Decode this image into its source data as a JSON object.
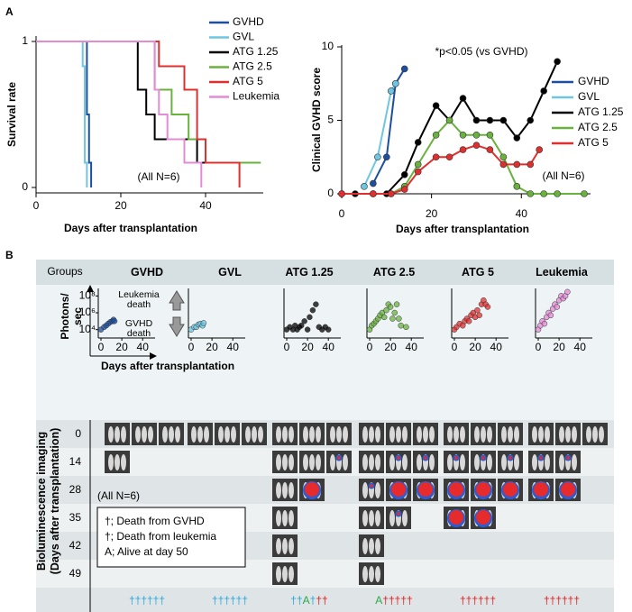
{
  "panel_labels": [
    "A",
    "B"
  ],
  "chart_data": [
    {
      "type": "survival",
      "ylabel": "Survival rate",
      "xlabel": "Days after transplantation",
      "annotation": "(All N=6)",
      "xlim": [
        0,
        55
      ],
      "xticks": [
        0,
        20,
        40
      ],
      "ylim": [
        0,
        1
      ],
      "yticks": [
        0,
        1
      ],
      "series": [
        {
          "name": "GVHD",
          "color": "#1d4f9e",
          "x": [
            0,
            12,
            12.5,
            13
          ],
          "values": [
            1,
            0.5,
            0.17,
            0
          ]
        },
        {
          "name": "GVL",
          "color": "#6fc6e0",
          "x": [
            0,
            11,
            11.5,
            12
          ],
          "values": [
            1,
            0.83,
            0.17,
            0
          ]
        },
        {
          "name": "ATG 1.25",
          "color": "#000000",
          "x": [
            0,
            24,
            26,
            28,
            38,
            53
          ],
          "values": [
            1,
            0.67,
            0.5,
            0.33,
            0.17,
            0.17
          ]
        },
        {
          "name": "ATG 2.5",
          "color": "#6ab23e",
          "x": [
            0,
            28,
            32,
            36,
            40,
            53
          ],
          "values": [
            1,
            0.67,
            0.5,
            0.33,
            0.17,
            0.17
          ]
        },
        {
          "name": "ATG 5",
          "color": "#e02f2f",
          "x": [
            0,
            29,
            35,
            38,
            40,
            48
          ],
          "values": [
            1,
            0.83,
            0.67,
            0.33,
            0.17,
            0
          ]
        },
        {
          "name": "Leukemia",
          "color": "#e48bd5",
          "x": [
            0,
            28,
            29,
            31,
            35,
            39
          ],
          "values": [
            1,
            0.67,
            0.5,
            0.33,
            0.17,
            0
          ]
        }
      ]
    },
    {
      "type": "line",
      "ylabel": "Clinical GVHD score",
      "xlabel": "Days after transplantation",
      "annotations": [
        "*p<0.05 (vs GVHD)",
        "(All N=6)"
      ],
      "xlim": [
        0,
        55
      ],
      "xticks": [
        0,
        20,
        40
      ],
      "ylim": [
        0,
        10
      ],
      "yticks": [
        0,
        5,
        10
      ],
      "series": [
        {
          "name": "GVHD",
          "color": "#1d4f9e",
          "x": [
            7,
            10,
            12,
            14
          ],
          "values": [
            0.7,
            2.5,
            7.5,
            8.5
          ]
        },
        {
          "name": "GVL",
          "color": "#6fc6e0",
          "x": [
            5,
            8,
            11,
            12
          ],
          "values": [
            0.5,
            2.5,
            7,
            7.5
          ]
        },
        {
          "name": "ATG 1.25",
          "color": "#000000",
          "x": [
            0,
            3,
            7,
            10,
            14,
            17,
            21,
            24,
            27,
            30,
            33,
            36,
            39,
            42,
            45,
            48
          ],
          "values": [
            0,
            0,
            0,
            0,
            1.3,
            3.5,
            6,
            5,
            6.5,
            5,
            5,
            5,
            3.8,
            5,
            7,
            9
          ]
        },
        {
          "name": "ATG 2.5",
          "color": "#6ab23e",
          "x": [
            0,
            7,
            11,
            14,
            17,
            21,
            24,
            27,
            30,
            33,
            36,
            39,
            42,
            45,
            48,
            54
          ],
          "values": [
            0,
            0,
            0,
            0.5,
            2,
            4,
            5,
            4,
            4,
            4,
            2.5,
            0.5,
            0,
            0,
            0,
            0
          ]
        },
        {
          "name": "ATG 5",
          "color": "#e02f2f",
          "x": [
            0,
            7,
            11,
            14,
            17,
            21,
            24,
            27,
            30,
            33,
            36,
            39,
            42,
            44
          ],
          "values": [
            0,
            0,
            0,
            0.3,
            1.5,
            2.5,
            2.5,
            3,
            3.3,
            3,
            2,
            2,
            2,
            3
          ]
        }
      ]
    },
    {
      "type": "scatter",
      "title": "GVHD",
      "color": "#1d4f9e",
      "ylabel": "Photons/ sec",
      "xlabel": "Days after transplantation",
      "annotations": [
        "Leukemia death",
        "GVHD death"
      ],
      "xlim": [
        0,
        45
      ],
      "xticks": [
        0,
        20,
        40
      ],
      "ylim": [
        1000,
        1000000000
      ],
      "log_y": true,
      "yticks": [
        {
          "value": 10000,
          "label": "10⁴"
        },
        {
          "value": 1000000,
          "label": "10⁶"
        },
        {
          "value": 100000000,
          "label": "10⁸"
        }
      ],
      "x": [
        0,
        3,
        5,
        7,
        9,
        11,
        12,
        13
      ],
      "values": [
        10000,
        20000,
        30000,
        50000,
        80000,
        100000,
        150000,
        100000
      ]
    },
    {
      "type": "scatter",
      "title": "GVL",
      "color": "#6fc6e0",
      "xlim": [
        0,
        45
      ],
      "xticks": [
        0,
        20,
        40
      ],
      "ylim": [
        1000,
        1000000000
      ],
      "log_y": true,
      "x": [
        0,
        3,
        5,
        7,
        9,
        11,
        12
      ],
      "values": [
        10000,
        20000,
        20000,
        40000,
        50000,
        30000,
        60000
      ]
    },
    {
      "type": "scatter",
      "title": "ATG 1.25",
      "color": "#000000",
      "xlim": [
        0,
        45
      ],
      "xticks": [
        0,
        20,
        40
      ],
      "ylim": [
        1000,
        1000000000
      ],
      "log_y": true,
      "x": [
        0,
        3,
        6,
        8,
        10,
        12,
        14,
        17,
        20,
        22,
        25,
        28,
        31,
        34,
        37,
        40
      ],
      "values": [
        10000,
        20000,
        10000,
        30000,
        10000,
        20000,
        30000,
        100000,
        10000,
        300000,
        2000000,
        10000000,
        20000,
        10000,
        20000,
        10000
      ]
    },
    {
      "type": "scatter",
      "title": "ATG 2.5",
      "color": "#6ab23e",
      "xlim": [
        0,
        45
      ],
      "xticks": [
        0,
        20,
        40
      ],
      "ylim": [
        1000,
        1000000000
      ],
      "log_y": true,
      "x": [
        0,
        2,
        4,
        6,
        8,
        10,
        12,
        14,
        16,
        18,
        20,
        22,
        24,
        26,
        28,
        30,
        35
      ],
      "values": [
        10000,
        30000,
        50000,
        100000,
        200000,
        500000,
        1000000,
        300000,
        2000000,
        10000000,
        5000000,
        200000,
        1000000,
        10000000,
        200000,
        30000,
        20000
      ]
    },
    {
      "type": "scatter",
      "title": "ATG 5",
      "color": "#e02f2f",
      "xlim": [
        0,
        45
      ],
      "xticks": [
        0,
        20,
        40
      ],
      "ylim": [
        1000,
        1000000000
      ],
      "log_y": true,
      "x": [
        0,
        2,
        5,
        8,
        10,
        12,
        14,
        16,
        18,
        20,
        22,
        24,
        26,
        28,
        30,
        32
      ],
      "values": [
        10000,
        20000,
        50000,
        30000,
        100000,
        200000,
        100000,
        500000,
        1000000,
        300000,
        2000000,
        500000,
        10000000,
        30000000,
        10000000,
        5000000
      ]
    },
    {
      "type": "scatter",
      "title": "Leukemia",
      "color": "#e48bd5",
      "xlim": [
        0,
        45
      ],
      "xticks": [
        0,
        20,
        40
      ],
      "ylim": [
        1000,
        1000000000
      ],
      "log_y": true,
      "x": [
        0,
        2,
        4,
        6,
        8,
        10,
        12,
        14,
        16,
        18,
        20,
        22,
        24,
        26,
        28
      ],
      "values": [
        10000,
        30000,
        100000,
        50000,
        300000,
        1000000,
        500000,
        3000000,
        10000000,
        5000000,
        30000000,
        100000000,
        50000000,
        100000000,
        300000000
      ]
    }
  ],
  "imaging": {
    "groups_label": "Groups",
    "ylabel": "Bioluminescence imaging (Days after transplantation)",
    "days": [
      0,
      14,
      28,
      35,
      42,
      49
    ],
    "note": "(All N=6)",
    "legend": [
      {
        "text": "†; Death from GVHD",
        "color": "#2aa7dc"
      },
      {
        "text": "†; Death from leukemia",
        "color": "#e02020"
      },
      {
        "text": "A; Alive at day 50",
        "color": "#2ea84a"
      }
    ],
    "outcomes": [
      [
        {
          "text": "††††††",
          "color": "#2aa7dc"
        }
      ],
      [
        {
          "text": "††††††",
          "color": "#2aa7dc"
        }
      ],
      [
        {
          "text": "††",
          "color": "#2aa7dc"
        },
        {
          "text": "A",
          "color": "#2ea84a"
        },
        {
          "text": "†",
          "color": "#2aa7dc"
        },
        {
          "text": "††",
          "color": "#e02020"
        }
      ],
      [
        {
          "text": "A",
          "color": "#2ea84a"
        },
        {
          "text": "†††††",
          "color": "#e02020"
        }
      ],
      [
        {
          "text": "††††††",
          "color": "#e02020"
        }
      ],
      [
        {
          "text": "††††††",
          "color": "#e02020"
        }
      ]
    ]
  }
}
